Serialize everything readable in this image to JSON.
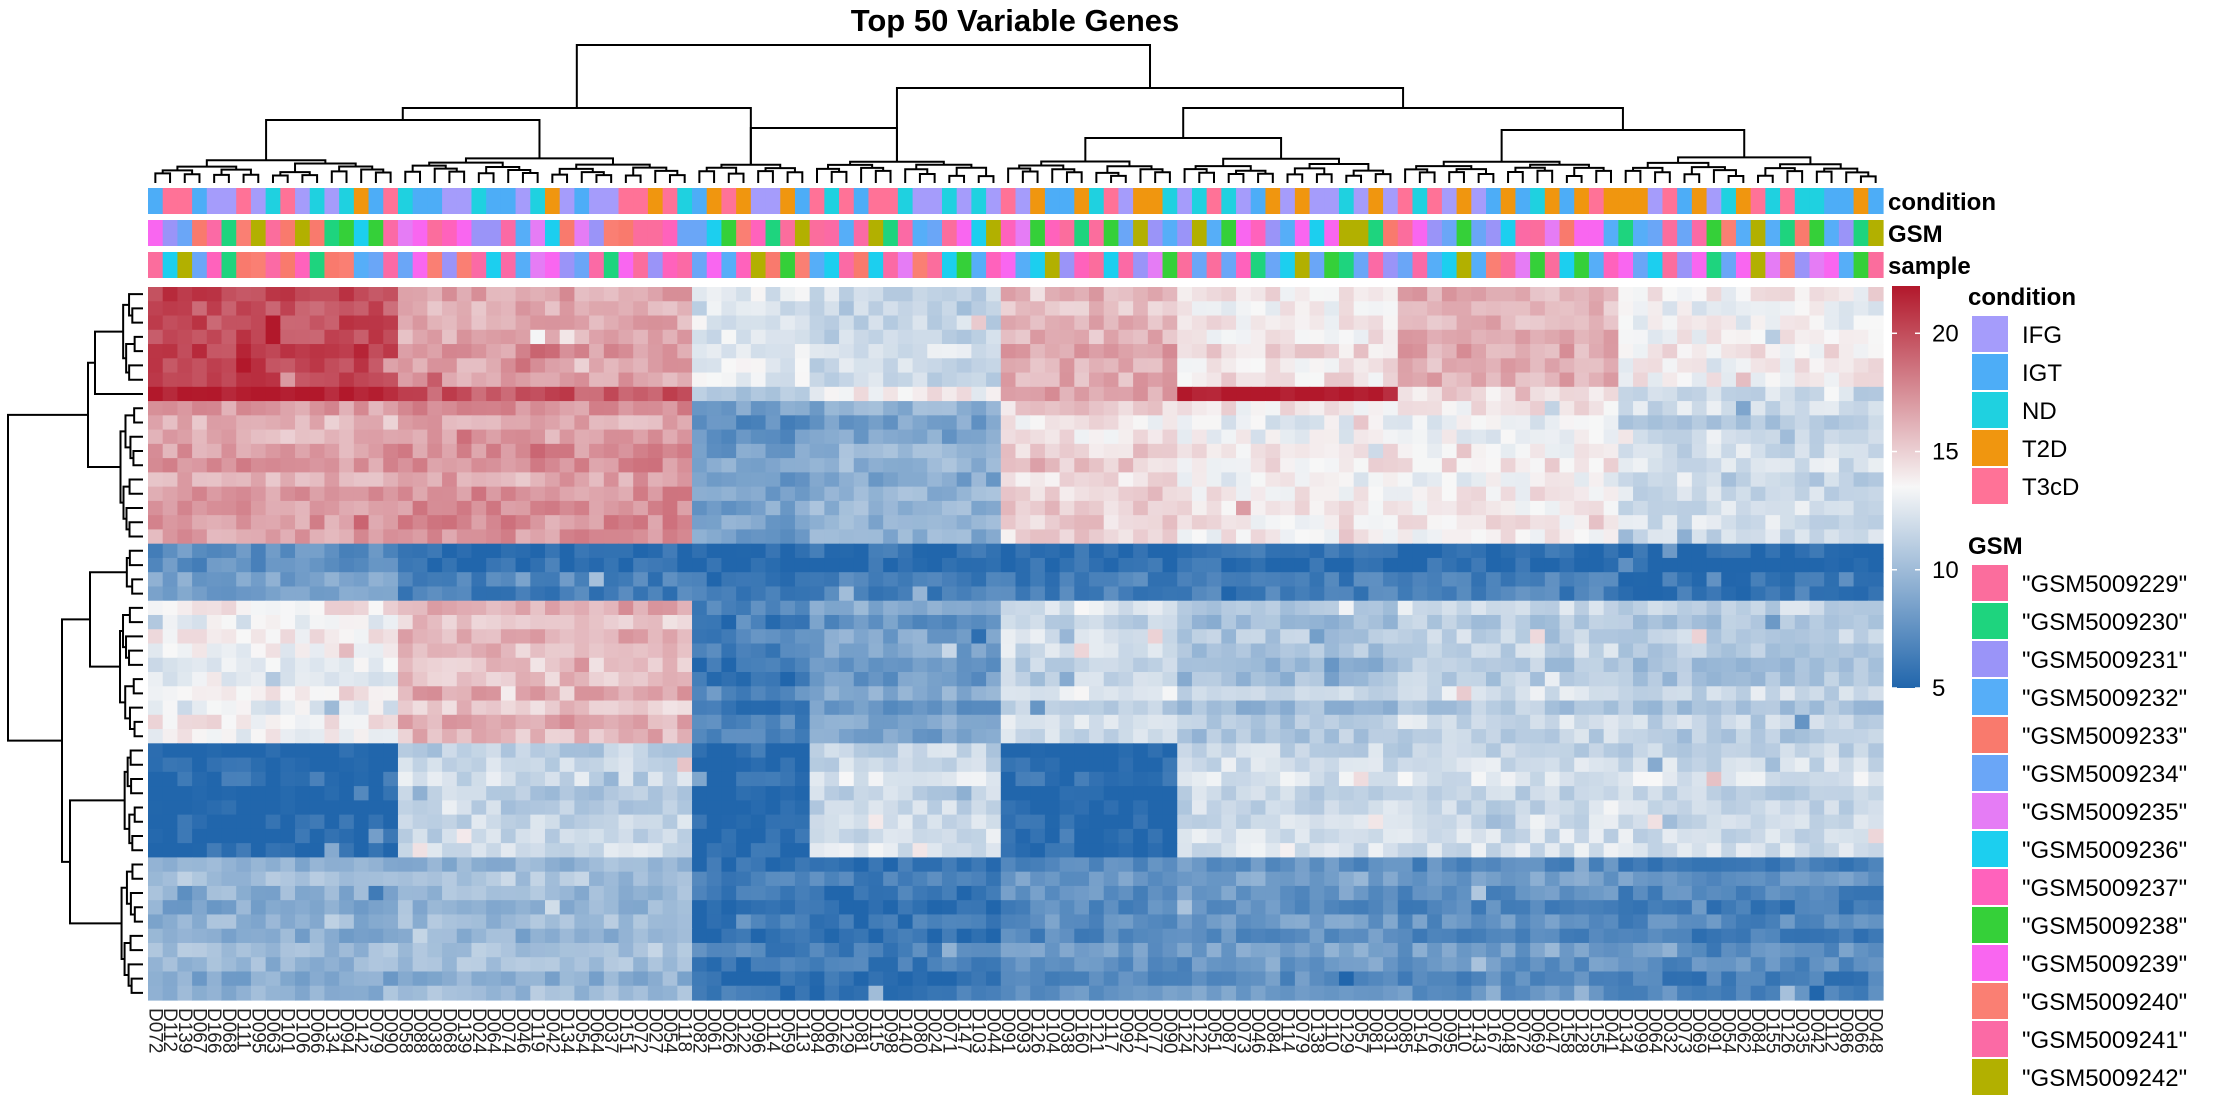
{
  "chart_data": {
    "type": "heatmap",
    "title": "Top 50 Variable Genes",
    "annotation_rows": [
      "condition",
      "GSM",
      "sample"
    ],
    "n_rows": 50,
    "n_cols": 118,
    "row_blocks": [
      {
        "rows": 7,
        "groups": [
          20.0,
          16.5,
          12.5,
          11.5,
          16.0,
          14.0,
          16.0,
          13.5
        ]
      },
      {
        "rows": 1,
        "groups": [
          21.5,
          19.0,
          10.0,
          13.0,
          16.0,
          21.5,
          14.0,
          11.0
        ]
      },
      {
        "rows": 10,
        "groups": [
          16.5,
          17.0,
          8.0,
          9.0,
          14.5,
          13.5,
          13.5,
          11.5
        ]
      },
      {
        "rows": 4,
        "groups": [
          8.0,
          6.0,
          5.5,
          6.0,
          6.0,
          6.0,
          6.0,
          5.5
        ]
      },
      {
        "rows": 10,
        "groups": [
          13.5,
          16.0,
          6.5,
          8.5,
          12.0,
          10.5,
          11.5,
          11.0
        ]
      },
      {
        "rows": 8,
        "groups": [
          5.0,
          11.5,
          5.0,
          12.0,
          5.0,
          12.0,
          12.0,
          12.0
        ]
      },
      {
        "rows": 10,
        "groups": [
          9.5,
          10.0,
          6.0,
          6.0,
          7.5,
          8.0,
          7.5,
          7.0
        ]
      }
    ],
    "column_groups": [
      17,
      20,
      8,
      13,
      12,
      15,
      15,
      18
    ],
    "color_scale": {
      "min": 5,
      "max": 22,
      "ticks": [
        5,
        10,
        15,
        20
      ],
      "low": "#2166ac",
      "mid": "#f7f7f7",
      "high": "#b2182b"
    },
    "legend": {
      "condition": {
        "title": "condition",
        "items": [
          {
            "label": "IFG",
            "color": "#a59cfb"
          },
          {
            "label": "IGT",
            "color": "#4dadf7"
          },
          {
            "label": "ND",
            "color": "#1fd1e0"
          },
          {
            "label": "T2D",
            "color": "#f0960f"
          },
          {
            "label": "T3cD",
            "color": "#ff7297"
          }
        ]
      },
      "GSM": {
        "title": "GSM",
        "items": [
          {
            "label": "\"GSM5009229\"",
            "color": "#fb6d9d"
          },
          {
            "label": "\"GSM5009230\"",
            "color": "#1ed47e"
          },
          {
            "label": "\"GSM5009231\"",
            "color": "#9a94f8"
          },
          {
            "label": "\"GSM5009232\"",
            "color": "#56aef8"
          },
          {
            "label": "\"GSM5009233\"",
            "color": "#f97a6d"
          },
          {
            "label": "\"GSM5009234\"",
            "color": "#6aa6f7"
          },
          {
            "label": "\"GSM5009235\"",
            "color": "#e57cf5"
          },
          {
            "label": "\"GSM5009236\"",
            "color": "#1ccfef"
          },
          {
            "label": "\"GSM5009237\"",
            "color": "#ff62bc"
          },
          {
            "label": "\"GSM5009238\"",
            "color": "#35d039"
          },
          {
            "label": "\"GSM5009239\"",
            "color": "#f966f0"
          },
          {
            "label": "\"GSM5009240\"",
            "color": "#fa7f73"
          },
          {
            "label": "\"GSM5009241\"",
            "color": "#fb6aa5"
          },
          {
            "label": "\"GSM5009242\"",
            "color": "#b2b000"
          }
        ]
      }
    },
    "column_labels": [
      "D072",
      "D112",
      "D139",
      "D067",
      "D166",
      "D068",
      "D111",
      "D095",
      "D063",
      "D101",
      "D106",
      "D066",
      "D134",
      "D094",
      "D142",
      "D079",
      "D090",
      "D058",
      "D088",
      "D038",
      "D068",
      "D139",
      "D024",
      "D064",
      "D074",
      "D046",
      "D119",
      "D042",
      "D134",
      "D054",
      "D064",
      "D037",
      "D151",
      "D072",
      "D027",
      "D054",
      "D118",
      "D082",
      "D061",
      "D026",
      "D122",
      "D096",
      "D114",
      "D059",
      "D113",
      "D084",
      "D066",
      "D129",
      "D081",
      "D115",
      "D098",
      "D140",
      "D080",
      "D024",
      "D071",
      "D147",
      "D103",
      "D044",
      "D091",
      "D093",
      "D126",
      "D104",
      "D038",
      "D160",
      "D121",
      "D117",
      "D092",
      "D047",
      "D077",
      "D090",
      "D124",
      "D122",
      "D051",
      "D087",
      "D073",
      "D046",
      "D084",
      "D114",
      "D079",
      "D138",
      "D110",
      "D129",
      "D057",
      "D081",
      "D031",
      "D085",
      "D154",
      "D076",
      "D095",
      "D110",
      "D143",
      "D167",
      "D048",
      "D072",
      "D069",
      "D047",
      "D158",
      "D128",
      "D155",
      "D041",
      "D134",
      "D099",
      "D064",
      "D032",
      "D073",
      "D069",
      "D091",
      "D054",
      "D062",
      "D084",
      "D155",
      "D126",
      "D035",
      "D042",
      "D112",
      "D086",
      "D066",
      "D048"
    ]
  }
}
